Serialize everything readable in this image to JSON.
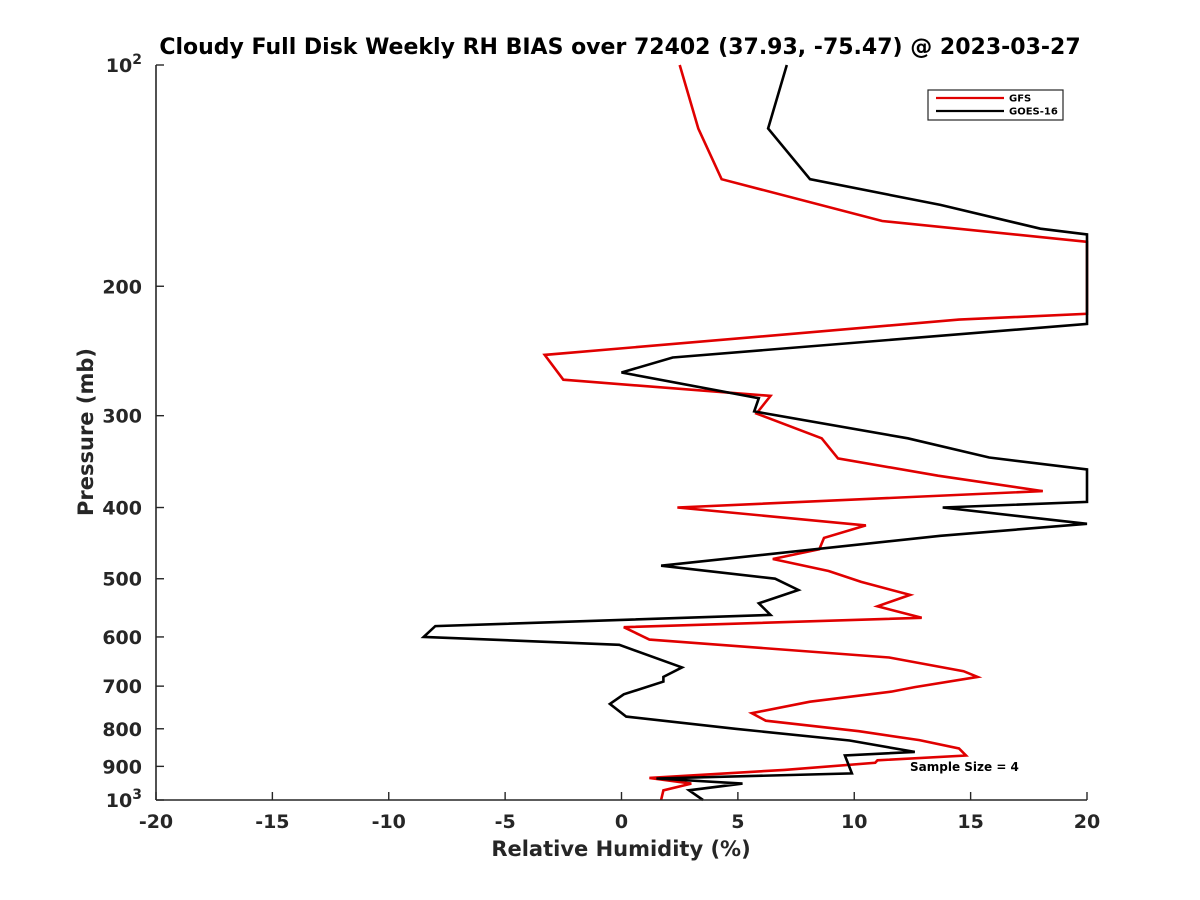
{
  "chart_data": {
    "type": "line",
    "title": "Cloudy Full Disk Weekly RH BIAS over 72402 (37.93, -75.47) @ 2023-03-27",
    "xlabel": "Relative Humidity (%)",
    "ylabel": "Pressure (mb)",
    "xlim": [
      -20,
      20
    ],
    "ylim": [
      100,
      1000
    ],
    "yscale": "log",
    "yreversed": true,
    "grid": false,
    "legend_position": "top-right",
    "xticks": [
      -20,
      -15,
      -10,
      -5,
      0,
      5,
      10,
      15,
      20
    ],
    "xtick_labels": [
      "-20",
      "-15",
      "-10",
      "-5",
      "0",
      "5",
      "10",
      "15",
      "20"
    ],
    "yticks": [
      {
        "value": 100,
        "base": "10",
        "exp": "2"
      },
      {
        "value": 200,
        "label": "200"
      },
      {
        "value": 300,
        "label": "300"
      },
      {
        "value": 400,
        "label": "400"
      },
      {
        "value": 500,
        "label": "500"
      },
      {
        "value": 600,
        "label": "600"
      },
      {
        "value": 700,
        "label": "700"
      },
      {
        "value": 800,
        "label": "800"
      },
      {
        "value": 900,
        "label": "900"
      },
      {
        "value": 1000,
        "base": "10",
        "exp": "3"
      }
    ],
    "annotation": "Sample Size = 4",
    "series": [
      {
        "name": "GFS",
        "color": "#e00000",
        "points": [
          [
            2.5,
            100
          ],
          [
            3.3,
            122
          ],
          [
            4.3,
            143
          ],
          [
            11.2,
            163
          ],
          [
            20.0,
            174
          ],
          [
            20.0,
            218
          ],
          [
            14.5,
            222
          ],
          [
            -3.3,
            248
          ],
          [
            -2.5,
            268
          ],
          [
            6.4,
            282
          ],
          [
            5.8,
            298
          ],
          [
            8.6,
            322
          ],
          [
            9.3,
            343
          ],
          [
            13.6,
            362
          ],
          [
            18.1,
            380
          ],
          [
            2.4,
            400
          ],
          [
            10.5,
            423
          ],
          [
            8.7,
            440
          ],
          [
            8.5,
            456
          ],
          [
            6.5,
            470
          ],
          [
            8.9,
            488
          ],
          [
            10.3,
            505
          ],
          [
            12.4,
            526
          ],
          [
            11.0,
            545
          ],
          [
            12.9,
            565
          ],
          [
            0.1,
            582
          ],
          [
            1.2,
            605
          ],
          [
            11.5,
            640
          ],
          [
            14.7,
            668
          ],
          [
            15.3,
            680
          ],
          [
            12.6,
            702
          ],
          [
            11.6,
            712
          ],
          [
            8.1,
            735
          ],
          [
            5.6,
            762
          ],
          [
            6.2,
            780
          ],
          [
            10.2,
            806
          ],
          [
            12.8,
            829
          ],
          [
            14.5,
            851
          ],
          [
            14.8,
            870
          ],
          [
            11.0,
            883
          ],
          [
            10.9,
            890
          ],
          [
            7.0,
            910
          ],
          [
            1.2,
            933
          ],
          [
            3.0,
            950
          ],
          [
            1.8,
            970
          ],
          [
            1.7,
            1000
          ]
        ]
      },
      {
        "name": "GOES-16",
        "color": "#000000",
        "points": [
          [
            7.1,
            100
          ],
          [
            6.3,
            122
          ],
          [
            8.1,
            143
          ],
          [
            13.7,
            155
          ],
          [
            18.0,
            167
          ],
          [
            20.0,
            170
          ],
          [
            20.0,
            225
          ],
          [
            2.2,
            250
          ],
          [
            0.0,
            262
          ],
          [
            5.9,
            284
          ],
          [
            5.7,
            296
          ],
          [
            12.3,
            322
          ],
          [
            15.8,
            342
          ],
          [
            20.0,
            355
          ],
          [
            20.0,
            393
          ],
          [
            13.8,
            400
          ],
          [
            20.0,
            421
          ],
          [
            13.7,
            437
          ],
          [
            1.7,
            480
          ],
          [
            6.6,
            500
          ],
          [
            7.6,
            518
          ],
          [
            5.9,
            540
          ],
          [
            6.4,
            560
          ],
          [
            -8.0,
            580
          ],
          [
            -8.5,
            600
          ],
          [
            -0.1,
            615
          ],
          [
            2.6,
            660
          ],
          [
            1.8,
            680
          ],
          [
            1.8,
            690
          ],
          [
            0.1,
            718
          ],
          [
            -0.5,
            740
          ],
          [
            0.2,
            770
          ],
          [
            4.9,
            800
          ],
          [
            9.8,
            830
          ],
          [
            12.6,
            860
          ],
          [
            9.6,
            870
          ],
          [
            9.9,
            920
          ],
          [
            1.5,
            935
          ],
          [
            5.2,
            950
          ],
          [
            2.9,
            970
          ],
          [
            3.5,
            1000
          ]
        ]
      }
    ]
  }
}
